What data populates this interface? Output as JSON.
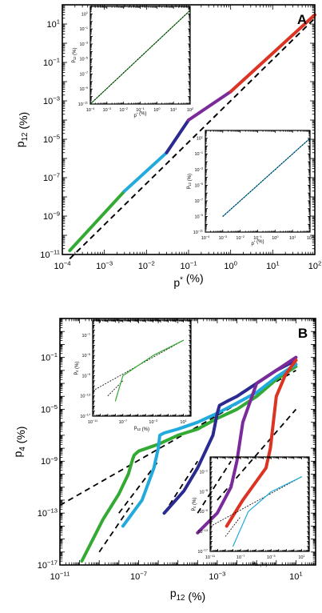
{
  "chart_data": [
    {
      "type": "line",
      "panel_label": "A",
      "x_scale": "log",
      "y_scale": "log",
      "xlabel": "p",
      "xlabel_sup": "*",
      "xlabel_unit": "(%)",
      "ylabel": "p",
      "ylabel_sub": "12",
      "ylabel_unit": "(%)",
      "xlim": [
        0.0001,
        100
      ],
      "ylim": [
        1e-11,
        100
      ],
      "x_ticks": [
        -4,
        -3,
        -2,
        -1,
        0,
        1,
        2
      ],
      "y_ticks": [
        -11,
        -9,
        -7,
        -5,
        -3,
        -1,
        1
      ],
      "series": [
        {
          "color": "#33aa33",
          "x": [
            0.00015,
            0.003
          ],
          "y": [
            1.6e-11,
            2e-08
          ]
        },
        {
          "color": "#22aadd",
          "x": [
            0.003,
            0.03
          ],
          "y": [
            2e-08,
            2e-06
          ]
        },
        {
          "color": "#2a2a90",
          "x": [
            0.03,
            0.1
          ],
          "y": [
            2e-06,
            0.0001
          ]
        },
        {
          "color": "#7a2a9a",
          "x": [
            0.1,
            1
          ],
          "y": [
            0.0001,
            0.003
          ]
        },
        {
          "color": "#dd3322",
          "x": [
            1,
            100
          ],
          "y": [
            0.003,
            30
          ]
        }
      ],
      "reference_lines": [
        {
          "style": "dashed",
          "x": [
            0.00015,
            100
          ],
          "y": [
            6e-12,
            20
          ]
        }
      ],
      "insets": [
        {
          "xlabel": "p",
          "xlabel_sup": "*",
          "xlabel_unit": "(%)",
          "ylabel": "p",
          "ylabel_sub": "12",
          "ylabel_unit": "(%)",
          "x_ticks": [
            -4,
            -3,
            -2,
            -1,
            0,
            1,
            2
          ],
          "y_ticks": [
            -11,
            -9,
            -7,
            -5,
            -3,
            -1,
            1
          ],
          "series": [
            {
              "color": "#33aa33",
              "x": [
                0.0001,
                100
              ],
              "y": [
                1e-11,
                30
              ]
            }
          ]
        },
        {
          "xlabel": "p",
          "xlabel_sup": "*",
          "xlabel_unit": "(%)",
          "ylabel": "p",
          "ylabel_sub": "12",
          "ylabel_unit": "(%)",
          "x_ticks": [
            -4,
            -3,
            -2,
            -1,
            0,
            1,
            2
          ],
          "y_ticks": [
            -11,
            -9,
            -7,
            -5,
            -3,
            -1,
            1
          ],
          "series": [
            {
              "color": "#22aadd",
              "x": [
                0.001,
                100
              ],
              "y": [
                1e-09,
                10
              ]
            }
          ]
        }
      ]
    },
    {
      "type": "line",
      "panel_label": "B",
      "x_scale": "log",
      "y_scale": "log",
      "xlabel": "p",
      "xlabel_sub": "12",
      "xlabel_unit": "(%)",
      "ylabel": "p",
      "ylabel_sub": "4",
      "ylabel_unit": "(%)",
      "xlim": [
        1e-11,
        100
      ],
      "ylim": [
        1e-17,
        100
      ],
      "x_ticks": [
        -11,
        -7,
        -3,
        1
      ],
      "y_ticks": [
        -17,
        -13,
        -9,
        -5,
        -1
      ],
      "series": [
        {
          "color": "#33aa33",
          "x": [
            1.3e-10,
            1.5e-09,
            1e-08,
            3e-08,
            5e-08,
            6e-08,
            1e-07,
            1e-06,
            1e-05,
            0.0001,
            0.001,
            0.01,
            0.1,
            1,
            10
          ],
          "y": [
            2e-17,
            3e-14,
            3e-12,
            1e-10,
            1.5e-09,
            3e-09,
            6e-09,
            2e-08,
            1e-07,
            3e-07,
            2e-06,
            1e-05,
            0.0001,
            0.002,
            0.02
          ]
        },
        {
          "color": "#22aadd",
          "x": [
            1.6e-08,
            1.5e-07,
            6e-07,
            1e-06,
            1.2e-06,
            2e-06,
            1e-05,
            0.0001,
            0.001,
            0.01,
            0.1,
            1,
            10
          ],
          "y": [
            1e-14,
            1e-12,
            3e-10,
            1e-08,
            1e-07,
            1.5e-07,
            3e-07,
            1e-06,
            5e-06,
            3e-05,
            0.0002,
            0.003,
            0.03
          ]
        },
        {
          "color": "#2a2a90",
          "x": [
            2e-06,
            2e-05,
            0.0001,
            0.0006,
            0.001,
            0.0013,
            0.003,
            0.01,
            0.1,
            1,
            10
          ],
          "y": [
            1e-13,
            5e-12,
            3e-10,
            1e-07,
            5e-06,
            2e-05,
            4e-05,
            0.0001,
            0.001,
            0.01,
            0.06
          ]
        },
        {
          "color": "#7a2a9a",
          "x": [
            0.0001,
            0.001,
            0.005,
            0.01,
            0.02,
            0.1,
            1,
            10
          ],
          "y": [
            3e-15,
            1e-13,
            1e-11,
            1e-09,
            1e-06,
            0.001,
            0.01,
            0.1
          ]
        },
        {
          "color": "#dd3322",
          "x": [
            0.003,
            0.02,
            0.1,
            0.3,
            0.5,
            1,
            3,
            10
          ],
          "y": [
            1e-14,
            1e-12,
            3e-11,
            3e-10,
            1e-08,
            0.0001,
            0.005,
            0.06
          ]
        }
      ],
      "reference_lines": [
        {
          "style": "dashed",
          "x": [
            1e-11,
            10
          ],
          "y": [
            4e-13,
            0.01
          ]
        },
        {
          "style": "dashed",
          "x": [
            1e-09,
            5e-08
          ],
          "y": [
            1e-16,
            6e-13
          ]
        },
        {
          "style": "dashed",
          "x": [
            1e-08,
            1e-06
          ],
          "y": [
            1e-13,
            1e-09
          ]
        },
        {
          "style": "dashed",
          "x": [
            2e-06,
            0.0001
          ],
          "y": [
            1e-13,
            1e-09
          ]
        },
        {
          "style": "dashed",
          "x": [
            0.0001,
            0.005
          ],
          "y": [
            1e-13,
            1e-09
          ]
        },
        {
          "style": "dashed",
          "x": [
            0.001,
            10
          ],
          "y": [
            1e-12,
            1e-05
          ]
        }
      ],
      "insets": [
        {
          "xlabel": "p",
          "xlabel_sub": "12",
          "xlabel_unit": "(%)",
          "ylabel": "p",
          "ylabel_sub": "4",
          "ylabel_unit": "(%)",
          "x_ticks": [
            -11,
            -7,
            -3,
            1
          ],
          "y_ticks": [
            -17,
            -13,
            -9,
            -5,
            -1
          ],
          "series": [
            {
              "color": "#33aa33",
              "x": [
                1e-08,
                1e-07,
                0.001,
                10
              ],
              "y": [
                1e-14,
                1e-09,
                1e-05,
                0.01
              ]
            }
          ]
        },
        {
          "xlabel": "p",
          "xlabel_sub": "12",
          "xlabel_unit": "(%)",
          "ylabel": "p",
          "ylabel_sub": "4",
          "ylabel_unit": "(%)",
          "x_ticks": [
            -11,
            -7,
            -3,
            1
          ],
          "y_ticks": [
            -17,
            -13,
            -9,
            -5,
            -1
          ],
          "series": [
            {
              "color": "#22aadd",
              "x": [
                1e-08,
                1e-06,
                0.001,
                10
              ],
              "y": [
                1e-16,
                1e-09,
                1e-05,
                0.01
              ]
            }
          ]
        }
      ]
    }
  ]
}
